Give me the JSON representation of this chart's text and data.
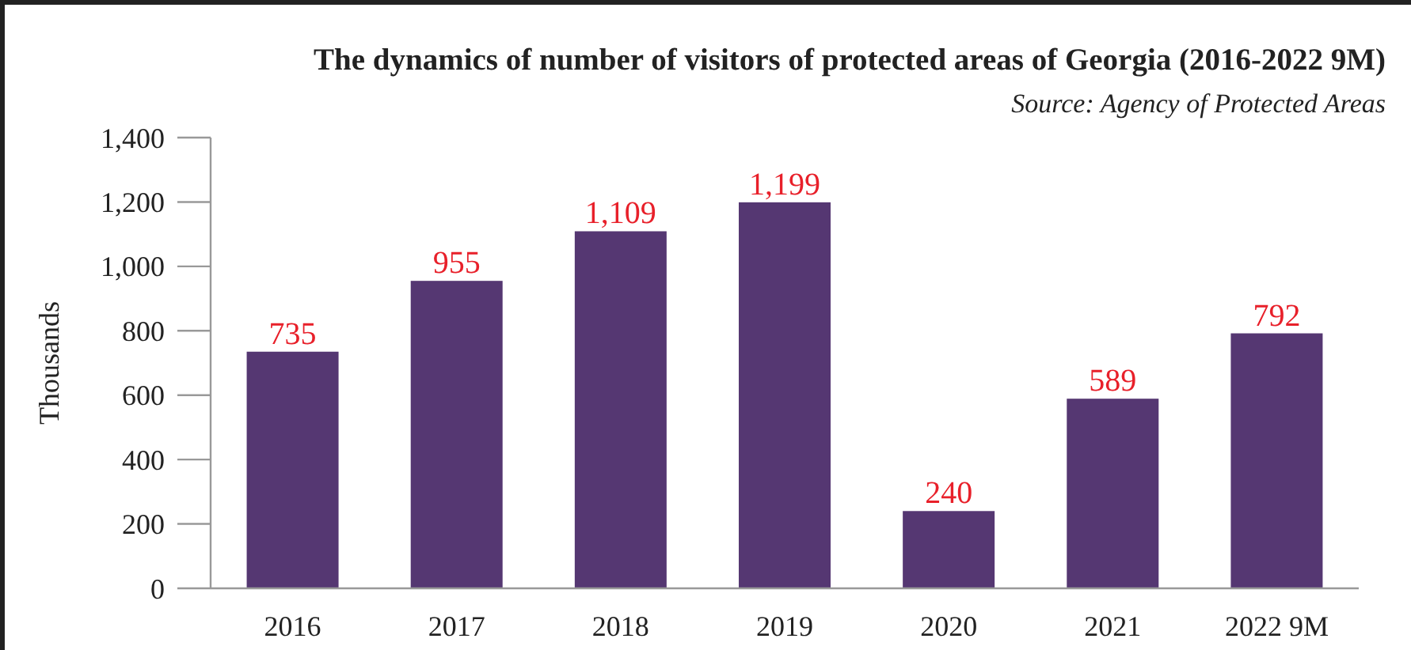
{
  "chart_data": {
    "type": "bar",
    "title": "The dynamics of number of visitors of protected areas of Georgia (2016-2022 9M)",
    "annotations": [
      "Source: Agency of Protected Areas"
    ],
    "ylabel": "Thousands",
    "categories": [
      "2016",
      "2017",
      "2018",
      "2019",
      "2020",
      "2021",
      "2022 9M"
    ],
    "values": [
      735,
      955,
      1109,
      1199,
      240,
      589,
      792
    ],
    "value_labels": [
      "735",
      "955",
      "1,109",
      "1,199",
      "240",
      "589",
      "792"
    ],
    "color": "#553772",
    "ylim": [
      0,
      1400
    ],
    "yticks": [
      {
        "value": 0,
        "label": "0"
      },
      {
        "value": 200,
        "label": "200"
      },
      {
        "value": 400,
        "label": "400"
      },
      {
        "value": 600,
        "label": "600"
      },
      {
        "value": 800,
        "label": "800"
      },
      {
        "value": 1000,
        "label": "1,000"
      },
      {
        "value": 1200,
        "label": "1,200"
      },
      {
        "value": 1400,
        "label": "1,400"
      }
    ],
    "grid": false
  }
}
